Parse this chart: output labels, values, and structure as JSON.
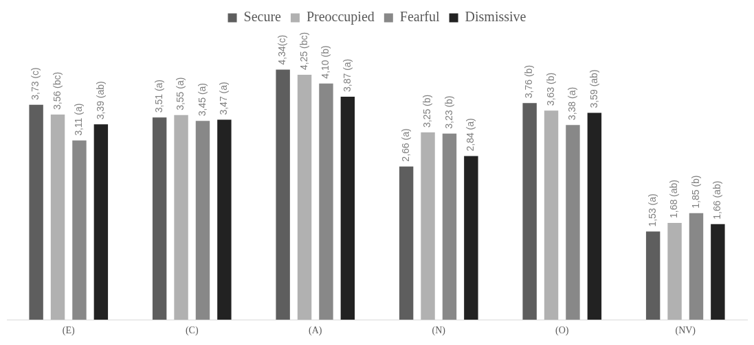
{
  "chart_data": {
    "type": "bar",
    "categories": [
      "(E)",
      "(C)",
      "(A)",
      "(N)",
      "(O)",
      "(NV)"
    ],
    "legend": "top",
    "grid": false,
    "series": [
      {
        "name": "Secure",
        "color": "#5e5e5e",
        "values": [
          3.73,
          3.51,
          4.34,
          2.66,
          3.76,
          1.53
        ],
        "value_labels": [
          "3,73 (c)",
          "3,51 (a)",
          "4,34(c)",
          "2,66 (a)",
          "3,76 (b)",
          "1,53 (a)"
        ]
      },
      {
        "name": "Preoccupied",
        "color": "#b1b1b1",
        "values": [
          3.56,
          3.55,
          4.25,
          3.25,
          3.63,
          1.68
        ],
        "value_labels": [
          "3,56 (bc)",
          "3,55 (a)",
          "4,25 (bc)",
          "3,25 (b)",
          "3,63 (b)",
          "1,68 (ab)"
        ]
      },
      {
        "name": "Fearful",
        "color": "#888888",
        "values": [
          3.11,
          3.45,
          4.1,
          3.23,
          3.38,
          1.85
        ],
        "value_labels": [
          "3,11 (a)",
          "3,45 (a)",
          "4,10 (b)",
          "3,23 (b)",
          "3,38 (a)",
          "1,85 (b)"
        ]
      },
      {
        "name": "Dismissive",
        "color": "#222222",
        "values": [
          3.39,
          3.47,
          3.87,
          2.84,
          3.59,
          1.66
        ],
        "value_labels": [
          "3,39 (ab)",
          "3,47 (a)",
          "3,87 (a)",
          "2,84 (a)",
          "3,59 (ab)",
          "1,66 (ab)"
        ]
      }
    ]
  }
}
